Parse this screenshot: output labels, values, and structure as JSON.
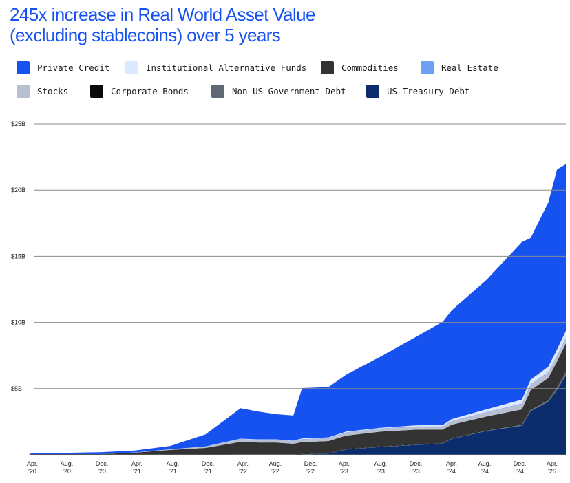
{
  "title": {
    "line1": "245x increase in Real World Asset Value",
    "line2": "(excluding stablecoins) over 5 years"
  },
  "legend": [
    {
      "label": "Private Credit",
      "color": "#1652f0"
    },
    {
      "label": "Institutional Alternative Funds",
      "color": "#dce8fd"
    },
    {
      "label": "Commodities",
      "color": "#333333"
    },
    {
      "label": "Real Estate",
      "color": "#6fa0f7"
    },
    {
      "label": "Stocks",
      "color": "#b7bfd0"
    },
    {
      "label": "Corporate Bonds",
      "color": "#0a0a0a"
    },
    {
      "label": "Non-US Government Debt",
      "color": "#5f6877"
    },
    {
      "label": "US Treasury Debt",
      "color": "#0b2d6e"
    }
  ],
  "chart_data": {
    "type": "area",
    "stacked": true,
    "y_ticks": [
      "$25B",
      "$20B",
      "$15B",
      "$10B",
      "$5B"
    ],
    "x_ticks": [
      [
        "Apr.",
        "'20"
      ],
      [
        "Aug.",
        "'20"
      ],
      [
        "Dec.",
        "'20"
      ],
      [
        "Apr.",
        "'21"
      ],
      [
        "Aug.",
        "'21"
      ],
      [
        "Dec.",
        "'21"
      ],
      [
        "Apr.",
        "'22"
      ],
      [
        "Aug.",
        "'22"
      ],
      [
        "Dec.",
        "'22"
      ],
      [
        "Apr.",
        "'23"
      ],
      [
        "Aug.",
        "'23"
      ],
      [
        "Dec.",
        "'23"
      ],
      [
        "Apr.",
        "'24"
      ],
      [
        "Aug.",
        "'24"
      ],
      [
        "Dec.",
        "'24"
      ],
      [
        "Apr.",
        "'25"
      ]
    ],
    "ylim": [
      0,
      25
    ],
    "y_unit": "$B",
    "grid": true,
    "x": [
      "2020-04",
      "2020-08",
      "2020-12",
      "2021-04",
      "2021-08",
      "2021-12",
      "2022-04",
      "2022-06",
      "2022-08",
      "2022-10",
      "2022-11",
      "2023-02",
      "2023-04",
      "2023-08",
      "2023-12",
      "2024-03",
      "2024-04",
      "2024-08",
      "2024-12",
      "2025-01",
      "2025-03",
      "2025-04",
      "2025-05"
    ],
    "series": [
      {
        "name": "US Treasury Debt",
        "color": "#0b2d6e",
        "values": [
          0,
          0,
          0,
          0,
          0,
          0,
          0,
          0,
          0,
          0,
          0.02,
          0.1,
          0.4,
          0.6,
          0.75,
          0.85,
          1.2,
          1.8,
          2.2,
          3.3,
          4.0,
          4.9,
          6.0
        ]
      },
      {
        "name": "Non-US Government Debt",
        "color": "#5f6877",
        "values": [
          0,
          0,
          0,
          0,
          0,
          0,
          0,
          0,
          0,
          0,
          0.01,
          0.01,
          0.02,
          0.02,
          0.02,
          0.02,
          0.03,
          0.05,
          0.08,
          0.12,
          0.15,
          0.2,
          0.25
        ]
      },
      {
        "name": "Corporate Bonds",
        "color": "#0a0a0a",
        "values": [
          0,
          0,
          0,
          0.01,
          0.02,
          0.02,
          0.03,
          0.03,
          0.03,
          0.03,
          0.03,
          0.03,
          0.03,
          0.03,
          0.03,
          0.03,
          0.04,
          0.05,
          0.05,
          0.06,
          0.06,
          0.06,
          0.06
        ]
      },
      {
        "name": "Commodities",
        "color": "#333333",
        "values": [
          0.05,
          0.05,
          0.05,
          0.15,
          0.35,
          0.5,
          0.95,
          0.9,
          0.9,
          0.8,
          0.9,
          0.9,
          1.0,
          1.1,
          1.1,
          1.0,
          1.0,
          1.0,
          1.1,
          1.4,
          1.6,
          1.9,
          2.1
        ]
      },
      {
        "name": "Stocks",
        "color": "#b7bfd0",
        "values": [
          0,
          0,
          0,
          0.02,
          0.05,
          0.1,
          0.2,
          0.2,
          0.2,
          0.2,
          0.2,
          0.2,
          0.22,
          0.22,
          0.22,
          0.22,
          0.25,
          0.3,
          0.4,
          0.4,
          0.4,
          0.4,
          0.4
        ]
      },
      {
        "name": "Real Estate",
        "color": "#6fa0f7",
        "values": [
          0,
          0,
          0,
          0,
          0,
          0.01,
          0.02,
          0.02,
          0.02,
          0.02,
          0.03,
          0.03,
          0.03,
          0.03,
          0.03,
          0.03,
          0.03,
          0.04,
          0.04,
          0.05,
          0.05,
          0.05,
          0.05
        ]
      },
      {
        "name": "Institutional Alternative Funds",
        "color": "#dce8fd",
        "values": [
          0,
          0,
          0,
          0,
          0,
          0.01,
          0.02,
          0.02,
          0.02,
          0.02,
          0.05,
          0.05,
          0.05,
          0.05,
          0.08,
          0.1,
          0.15,
          0.2,
          0.3,
          0.35,
          0.4,
          0.45,
          0.5
        ]
      },
      {
        "name": "Private Credit",
        "color": "#1652f0",
        "values": [
          0.05,
          0.1,
          0.15,
          0.15,
          0.25,
          0.9,
          2.3,
          2.1,
          1.9,
          1.9,
          3.8,
          3.8,
          4.3,
          5.4,
          6.7,
          7.8,
          8.2,
          9.8,
          11.9,
          10.7,
          12.4,
          13.6,
          12.6
        ]
      }
    ]
  }
}
